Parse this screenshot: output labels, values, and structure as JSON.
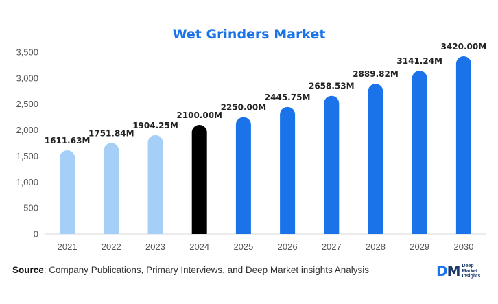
{
  "chart_data": {
    "type": "bar",
    "title": "Wet Grinders Market",
    "categories": [
      "2021",
      "2022",
      "2023",
      "2024",
      "2025",
      "2026",
      "2027",
      "2028",
      "2029",
      "2030"
    ],
    "values": [
      1611.63,
      1751.84,
      1904.25,
      2100.0,
      2250.0,
      2445.75,
      2658.53,
      2889.82,
      3141.24,
      3420.0
    ],
    "data_labels": [
      "1611.63M",
      "1751.84M",
      "1904.25M",
      "2100.00M",
      "2250.00M",
      "2445.75M",
      "2658.53M",
      "2889.82M",
      "3141.24M",
      "3420.00M"
    ],
    "y_ticks": [
      "0",
      "500",
      "1,000",
      "1,500",
      "2,000",
      "2,500",
      "3,000",
      "3,500"
    ],
    "ylim": [
      0,
      3500
    ],
    "xlabel": "",
    "ylabel": "",
    "grid": false,
    "colors": {
      "historical": "#a6cff8",
      "base_year": "#000000",
      "forecast": "#1a73e8",
      "title": "#1a73e8"
    },
    "bar_color_keys": [
      "historical",
      "historical",
      "historical",
      "base_year",
      "forecast",
      "forecast",
      "forecast",
      "forecast",
      "forecast",
      "forecast"
    ]
  },
  "source": {
    "label": "Source",
    "text": ": Company Publications, Primary Interviews, and Deep Market insights Analysis"
  },
  "logo": {
    "mark_d": "D",
    "mark_m": "M",
    "line1": "Deep",
    "line2": "Market",
    "line3": "Insights"
  }
}
